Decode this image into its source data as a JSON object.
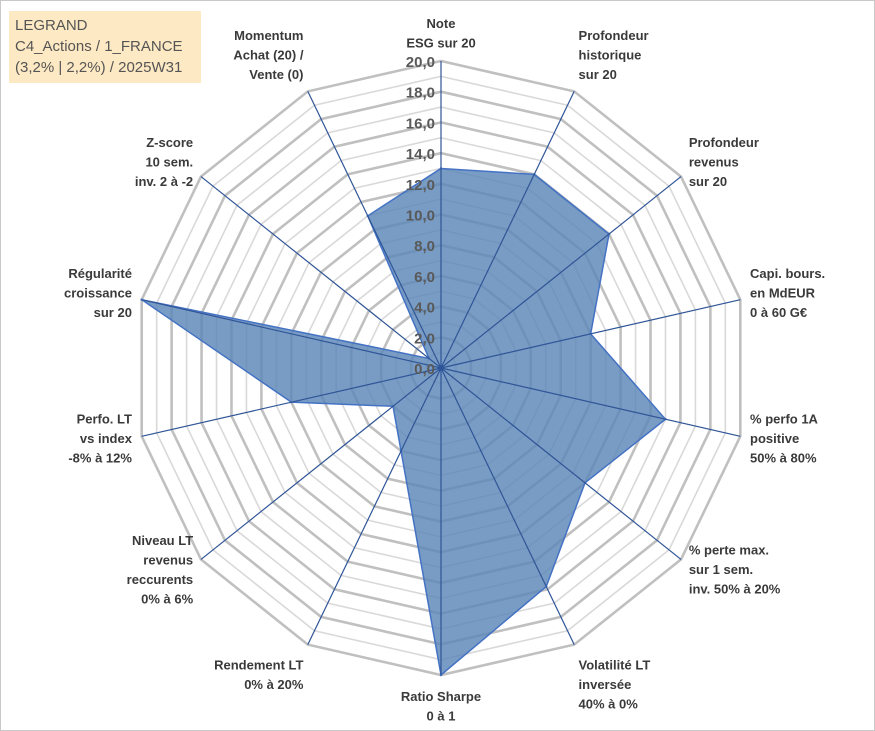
{
  "title_box": {
    "line1": "LEGRAND",
    "line2": "C4_Actions / 1_FRANCE",
    "line3": "(3,2% | 2,2%) / 2025W31"
  },
  "colors": {
    "fill": "#5b86b7",
    "fill_opacity": 0.82,
    "outline": "#4472c4",
    "spoke": "#2f5597",
    "grid_major": "#c0c0c0",
    "grid_minor": "#d9d9d9",
    "title_bg": "#fde9c3"
  },
  "chart_data": {
    "type": "radar",
    "rlim": [
      0,
      20
    ],
    "tick_step": 2,
    "tick_labels": [
      "0,0",
      "2,0",
      "4,0",
      "6,0",
      "8,0",
      "10,0",
      "12,0",
      "14,0",
      "16,0",
      "18,0",
      "20,0"
    ],
    "grid": true,
    "axes": [
      {
        "label": [
          "Note",
          "ESG sur 20"
        ],
        "value": 13.0
      },
      {
        "label": [
          "Profondeur",
          "historique",
          "sur 20"
        ],
        "value": 14.0
      },
      {
        "label": [
          "Profondeur",
          "revenus",
          "sur 20"
        ],
        "value": 14.0
      },
      {
        "label": [
          "Capi. bours.",
          "en MdEUR",
          "0 à 60 G€"
        ],
        "value": 10.0
      },
      {
        "label": [
          "% perfo 1A",
          "positive",
          "50% à 80%"
        ],
        "value": 15.0
      },
      {
        "label": [
          "% perte max.",
          "sur 1 sem.",
          "inv. 50% à 20%"
        ],
        "value": 12.0
      },
      {
        "label": [
          "Volatilité LT",
          "inversée",
          "40% à 0%"
        ],
        "value": 15.8
      },
      {
        "label": [
          "Ratio Sharpe",
          "0 à 1"
        ],
        "value": 20.0
      },
      {
        "label": [
          "Rendement LT",
          "0% à 20%"
        ],
        "value": 6.0
      },
      {
        "label": [
          "Niveau LT",
          "revenus",
          "reccurents",
          "0% à 6%"
        ],
        "value": 4.0
      },
      {
        "label": [
          "Perfo. LT",
          "vs index",
          "-8% à 12%"
        ],
        "value": 10.0
      },
      {
        "label": [
          "Régularité",
          "croissance",
          "sur 20"
        ],
        "value": 20.0
      },
      {
        "label": [
          "Z-score",
          "10 sem.",
          "inv. 2 à -2"
        ],
        "value": 1.0
      },
      {
        "label": [
          "Momentum",
          "Achat (20) /",
          "Vente (0)"
        ],
        "value": 11.0
      }
    ]
  }
}
